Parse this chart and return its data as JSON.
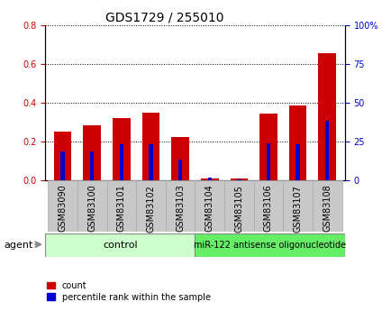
{
  "title": "GDS1729 / 255010",
  "categories": [
    "GSM83090",
    "GSM83100",
    "GSM83101",
    "GSM83102",
    "GSM83103",
    "GSM83104",
    "GSM83105",
    "GSM83106",
    "GSM83107",
    "GSM83108"
  ],
  "count_values": [
    0.25,
    0.285,
    0.32,
    0.35,
    0.225,
    0.012,
    0.008,
    0.345,
    0.385,
    0.655
  ],
  "percentile_values": [
    0.15,
    0.15,
    0.185,
    0.185,
    0.105,
    0.015,
    0.005,
    0.19,
    0.185,
    0.305
  ],
  "left_ylim": [
    0,
    0.8
  ],
  "left_yticks": [
    0,
    0.2,
    0.4,
    0.6,
    0.8
  ],
  "right_ylim": [
    0,
    1.0
  ],
  "right_yticks": [
    0,
    0.25,
    0.5,
    0.75,
    1.0
  ],
  "right_yticklabels": [
    "0",
    "25",
    "50",
    "75",
    "100%"
  ],
  "bar_width": 0.6,
  "count_color": "#cc0000",
  "percentile_color": "#0000cc",
  "grid_color": "#000000",
  "group1_label": "control",
  "group2_label": "miR-122 antisense oligonucleotide",
  "group_bg_color1": "#ccffcc",
  "group_bg_color2": "#66ee66",
  "agent_label": "agent",
  "legend_count_label": "count",
  "legend_percentile_label": "percentile rank within the sample",
  "title_fontsize": 10,
  "tick_fontsize": 7,
  "label_fontsize": 8,
  "xtick_bg_color": "#c8c8c8",
  "white": "#ffffff"
}
